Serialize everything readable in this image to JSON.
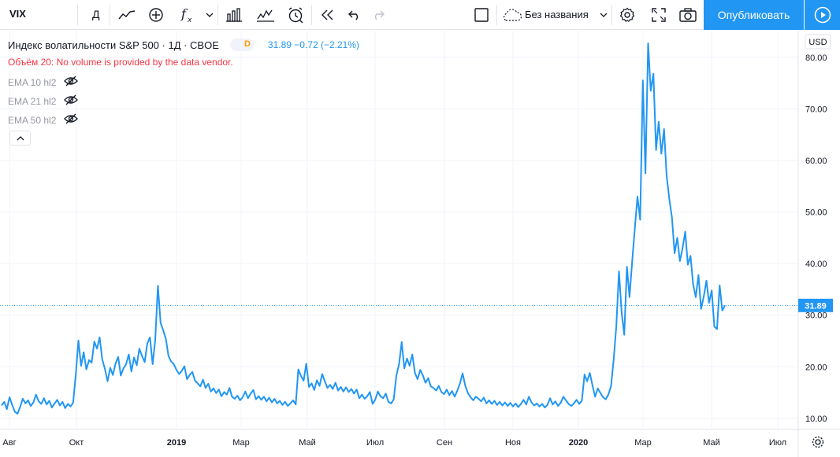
{
  "toolbar": {
    "symbol": "VIX",
    "interval": "Д",
    "layout_name": "Без названия",
    "publish_label": "Опубликовать",
    "icons": [
      "line-chart-icon",
      "add-indicator-icon",
      "fx-icon",
      "chevron-down-icon",
      "bar-chart-icon",
      "compare-icon",
      "alert-clock-icon",
      "replay-icon",
      "undo-icon",
      "redo-icon",
      "fullscreen-square-icon",
      "cloud-icon",
      "settings-gear-icon",
      "expand-icon",
      "camera-icon",
      "play-icon"
    ]
  },
  "legend": {
    "title": "Индекс волатильности S&P 500 · 1Д · CBOE",
    "badge": "D",
    "values": "31.89  −0.72 (−2.21%)",
    "volume_message": "Объём 20: No volume is provided by the data vendor.",
    "indicators": [
      "EMA 10 hl2",
      "EMA 21 hl2",
      "EMA 50 hl2"
    ]
  },
  "price_axis": {
    "currency": "USD",
    "last_price": "31.89",
    "labels": [
      "10.00",
      "20.00",
      "30.00",
      "40.00",
      "50.00",
      "60.00",
      "70.00",
      "80.00"
    ]
  },
  "time_axis": {
    "labels": [
      "Авг",
      "Окт",
      "2019",
      "Мар",
      "Май",
      "Июл",
      "Сен",
      "Ноя",
      "2020",
      "Мар",
      "Май",
      "Июл"
    ]
  },
  "colors": {
    "line": "#2196f3",
    "accent": "#2196f3",
    "negative": "#f23645",
    "grid": "#f0f3fa"
  },
  "chart_data": {
    "type": "line",
    "series": [
      {
        "values": [
          12.5,
          13.2,
          11.8,
          14.1,
          12.6,
          11.3,
          10.9,
          12.2,
          13.8,
          12.9,
          13.5,
          12.4,
          13.1,
          14.6,
          13.3,
          12.8,
          13.9,
          12.7,
          13.4,
          12.1,
          12.9,
          13.6,
          12.5,
          13.2,
          12.0,
          12.8,
          12.3,
          13.0,
          18.5,
          25.1,
          20.2,
          22.8,
          19.5,
          21.3,
          20.8,
          24.9,
          23.5,
          25.7,
          21.4,
          19.6,
          17.2,
          19.8,
          18.4,
          20.6,
          21.9,
          18.3,
          19.7,
          20.5,
          22.4,
          19.1,
          21.8,
          20.3,
          23.5,
          22.1,
          20.9,
          24.5,
          25.7,
          20.5,
          25.2,
          35.7,
          28.5,
          27.1,
          25.4,
          22.1,
          21.0,
          20.5,
          19.4,
          18.6,
          19.2,
          20.1,
          17.6,
          18.4,
          19.0,
          17.3,
          16.8,
          16.2,
          17.5,
          15.9,
          16.7,
          15.2,
          15.8,
          14.9,
          15.6,
          14.3,
          15.1,
          14.6,
          15.9,
          14.2,
          13.8,
          14.4,
          13.5,
          14.1,
          15.2,
          13.9,
          14.8,
          15.5,
          13.7,
          14.3,
          13.6,
          14.2,
          13.3,
          14.0,
          13.1,
          13.8,
          12.9,
          13.4,
          12.6,
          13.2,
          12.4,
          12.9,
          13.5,
          12.7,
          19.5,
          18.2,
          17.3,
          20.6,
          16.1,
          16.8,
          15.5,
          17.4,
          16.3,
          18.6,
          17.2,
          15.9,
          16.5,
          15.7,
          16.9,
          15.4,
          16.1,
          15.2,
          16.0,
          15.1,
          15.7,
          14.8,
          15.6,
          13.9,
          14.6,
          13.8,
          14.3,
          15.1,
          12.8,
          13.6,
          15.2,
          14.3,
          13.9,
          14.8,
          13.2,
          12.9,
          13.7,
          18.3,
          20.5,
          24.8,
          19.7,
          21.6,
          20.2,
          22.4,
          18.8,
          17.6,
          19.4,
          18.3,
          16.9,
          17.8,
          16.2,
          15.9,
          15.4,
          16.3,
          15.1,
          14.7,
          15.6,
          14.5,
          15.3,
          14.2,
          15.4,
          16.8,
          18.7,
          16.3,
          14.9,
          14.1,
          13.5,
          14.2,
          13.8,
          13.3,
          14.0,
          12.9,
          13.5,
          12.8,
          13.4,
          12.6,
          13.2,
          12.5,
          13.1,
          12.4,
          13.0,
          12.3,
          12.9,
          12.2,
          12.8,
          13.6,
          12.7,
          14.2,
          13.1,
          12.5,
          12.9,
          12.3,
          12.8,
          12.1,
          12.6,
          13.9,
          12.7,
          13.3,
          12.4,
          13.0,
          14.2,
          13.5,
          12.8,
          12.4,
          12.9,
          13.6,
          12.8,
          13.4,
          18.5,
          17.2,
          18.8,
          16.4,
          14.2,
          15.8,
          14.9,
          14.1,
          13.7,
          14.6,
          16.2,
          21.4,
          27.8,
          38.5,
          30.5,
          26.2,
          39.4,
          33.5,
          40.5,
          47.0,
          53.0,
          48.5,
          75.5,
          57.5,
          82.7,
          73.5,
          76.8,
          62.0,
          67.5,
          61.3,
          66.1,
          57.0,
          52.5,
          49.0,
          42.0,
          45.0,
          40.5,
          43.0,
          46.2,
          39.8,
          41.5,
          36.0,
          33.5,
          37.8,
          31.2,
          33.6,
          36.7,
          32.4,
          34.8,
          27.8,
          27.3,
          35.8,
          30.9,
          31.89
        ]
      }
    ],
    "ylim": [
      8.0,
      85.0
    ]
  }
}
